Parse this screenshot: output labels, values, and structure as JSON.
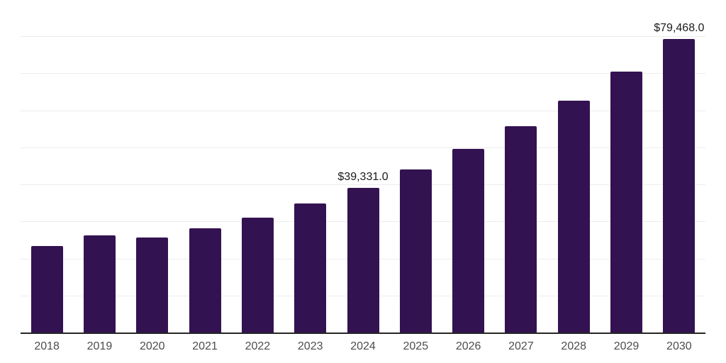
{
  "chart": {
    "background_color": "#ffffff",
    "bar_color": "#331251",
    "grid_color": "#ededed",
    "axis_color": "#262626",
    "tick_label_color": "#4d4d4d",
    "data_label_color": "#1a1a1a"
  },
  "chart_data": {
    "type": "bar",
    "title": "",
    "xlabel": "",
    "ylabel": "",
    "categories": [
      "2018",
      "2019",
      "2020",
      "2021",
      "2022",
      "2023",
      "2024",
      "2025",
      "2026",
      "2027",
      "2028",
      "2029",
      "2030"
    ],
    "values": [
      23500,
      26400,
      25800,
      28300,
      31300,
      35100,
      39331,
      44200,
      49700,
      55900,
      62900,
      70700,
      79468
    ],
    "data_labels": [
      "",
      "",
      "",
      "",
      "",
      "",
      "$39,331.0",
      "",
      "",
      "",
      "",
      "",
      "$79,468.0"
    ],
    "ylim": [
      0,
      90000
    ],
    "grid_interval": 10000,
    "grid": "horizontal",
    "legend": "none",
    "y_axis_labels": "none"
  }
}
